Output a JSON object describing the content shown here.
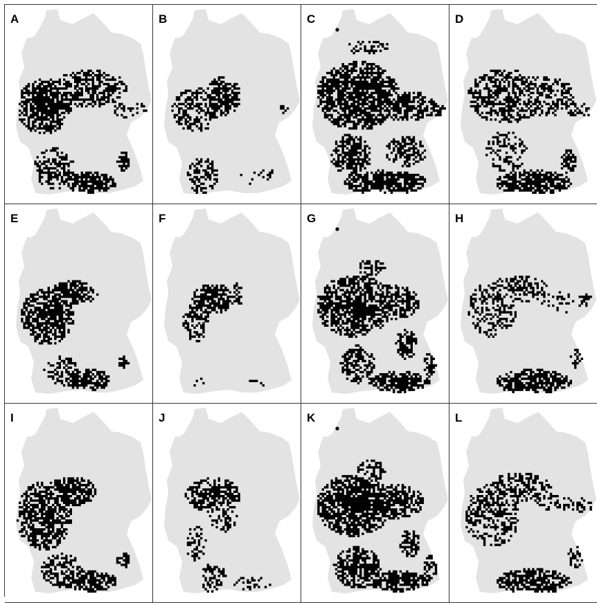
{
  "figure": {
    "panels": [
      {
        "label": "A",
        "cluster": "A"
      },
      {
        "label": "B",
        "cluster": "B"
      },
      {
        "label": "C",
        "cluster": "C",
        "island_dot": true
      },
      {
        "label": "D",
        "cluster": "D"
      },
      {
        "label": "E",
        "cluster": "E"
      },
      {
        "label": "F",
        "cluster": "F"
      },
      {
        "label": "G",
        "cluster": "G",
        "island_dot": true
      },
      {
        "label": "H",
        "cluster": "H"
      },
      {
        "label": "I",
        "cluster": "I"
      },
      {
        "label": "J",
        "cluster": "J"
      },
      {
        "label": "K",
        "cluster": "K",
        "island_dot": true
      },
      {
        "label": "L",
        "cluster": "L"
      }
    ],
    "colors": {
      "land": "#e3e3e3",
      "occurrence": "#000000",
      "panel_border": "#333333",
      "background": "#ffffff"
    }
  }
}
